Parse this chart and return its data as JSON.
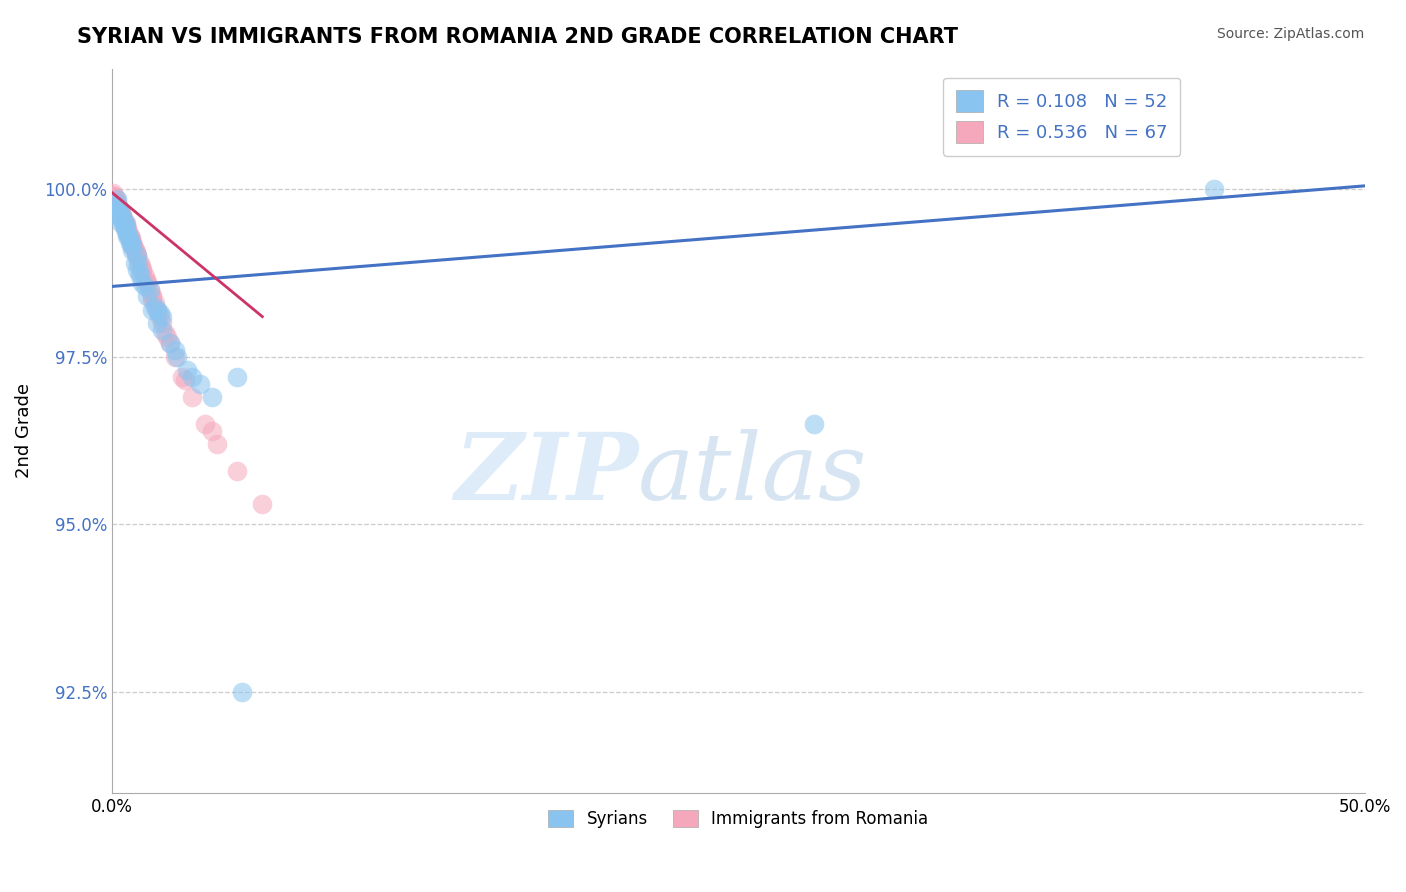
{
  "title": "SYRIAN VS IMMIGRANTS FROM ROMANIA 2ND GRADE CORRELATION CHART",
  "source": "Source: ZipAtlas.com",
  "ylabel": "2nd Grade",
  "R_blue": 0.108,
  "N_blue": 52,
  "R_pink": 0.536,
  "N_pink": 67,
  "blue_color": "#89C4F0",
  "pink_color": "#F5A8BC",
  "blue_line_color": "#4472C4",
  "pink_line_color": "#CC3366",
  "blue_label": "Syrians",
  "pink_label": "Immigrants from Romania",
  "xlim": [
    0,
    50
  ],
  "ylim": [
    91.0,
    101.8
  ],
  "ytick_values": [
    92.5,
    95.0,
    97.5,
    100.0
  ],
  "blue_scatter_x": [
    0.15,
    0.2,
    0.25,
    0.3,
    0.35,
    0.4,
    0.5,
    0.55,
    0.6,
    0.7,
    0.8,
    0.9,
    1.0,
    1.1,
    1.2,
    1.4,
    1.6,
    1.8,
    2.0,
    2.3,
    2.6,
    3.0,
    3.5,
    4.0,
    0.3,
    0.5,
    0.7,
    1.0,
    1.5,
    2.0,
    0.2,
    0.4,
    0.6,
    0.8,
    1.3,
    1.7,
    2.5,
    3.2,
    0.25,
    0.45,
    0.65,
    1.1,
    1.9,
    0.35,
    0.55,
    0.75,
    1.05,
    1.8,
    5.0,
    28.0,
    44.0,
    5.2
  ],
  "blue_scatter_y": [
    99.8,
    99.85,
    99.6,
    99.7,
    99.5,
    99.6,
    99.4,
    99.5,
    99.3,
    99.2,
    99.1,
    98.9,
    98.8,
    98.7,
    98.6,
    98.4,
    98.2,
    98.0,
    97.9,
    97.7,
    97.5,
    97.3,
    97.1,
    96.9,
    99.65,
    99.45,
    99.25,
    99.0,
    98.5,
    98.1,
    99.75,
    99.55,
    99.35,
    99.15,
    98.55,
    98.25,
    97.6,
    97.2,
    99.7,
    99.5,
    99.3,
    98.75,
    98.15,
    99.6,
    99.4,
    99.2,
    98.9,
    98.2,
    97.2,
    96.5,
    100.0,
    92.5
  ],
  "pink_scatter_x": [
    0.05,
    0.1,
    0.15,
    0.2,
    0.25,
    0.3,
    0.35,
    0.4,
    0.45,
    0.5,
    0.55,
    0.6,
    0.65,
    0.7,
    0.75,
    0.8,
    0.85,
    0.9,
    0.95,
    1.0,
    1.1,
    1.2,
    1.3,
    1.4,
    1.5,
    1.6,
    1.7,
    1.8,
    2.0,
    2.2,
    2.5,
    2.8,
    3.2,
    3.7,
    4.2,
    5.0,
    6.0,
    0.1,
    0.2,
    0.3,
    0.4,
    0.5,
    0.6,
    0.7,
    0.8,
    0.9,
    1.0,
    1.2,
    1.4,
    1.6,
    1.9,
    2.3,
    0.15,
    0.25,
    0.35,
    0.45,
    0.55,
    0.65,
    0.75,
    0.85,
    0.95,
    1.15,
    1.35,
    1.6,
    2.1,
    2.9,
    4.0
  ],
  "pink_scatter_y": [
    99.95,
    99.9,
    99.85,
    99.8,
    99.75,
    99.7,
    99.65,
    99.6,
    99.55,
    99.5,
    99.45,
    99.4,
    99.35,
    99.3,
    99.25,
    99.2,
    99.15,
    99.1,
    99.05,
    99.0,
    98.9,
    98.8,
    98.7,
    98.6,
    98.5,
    98.4,
    98.3,
    98.2,
    98.0,
    97.8,
    97.5,
    97.2,
    96.9,
    96.5,
    96.2,
    95.8,
    95.3,
    99.9,
    99.8,
    99.7,
    99.6,
    99.5,
    99.4,
    99.3,
    99.2,
    99.1,
    99.0,
    98.8,
    98.6,
    98.4,
    98.1,
    97.7,
    99.85,
    99.75,
    99.65,
    99.55,
    99.45,
    99.35,
    99.25,
    99.15,
    99.05,
    98.85,
    98.65,
    98.35,
    97.85,
    97.15,
    96.4
  ],
  "blue_line_x0": 0,
  "blue_line_y0": 98.55,
  "blue_line_x1": 50,
  "blue_line_y1": 100.05,
  "pink_line_x0": 0,
  "pink_line_y0": 99.95,
  "pink_line_x1": 6,
  "pink_line_y1": 98.1
}
